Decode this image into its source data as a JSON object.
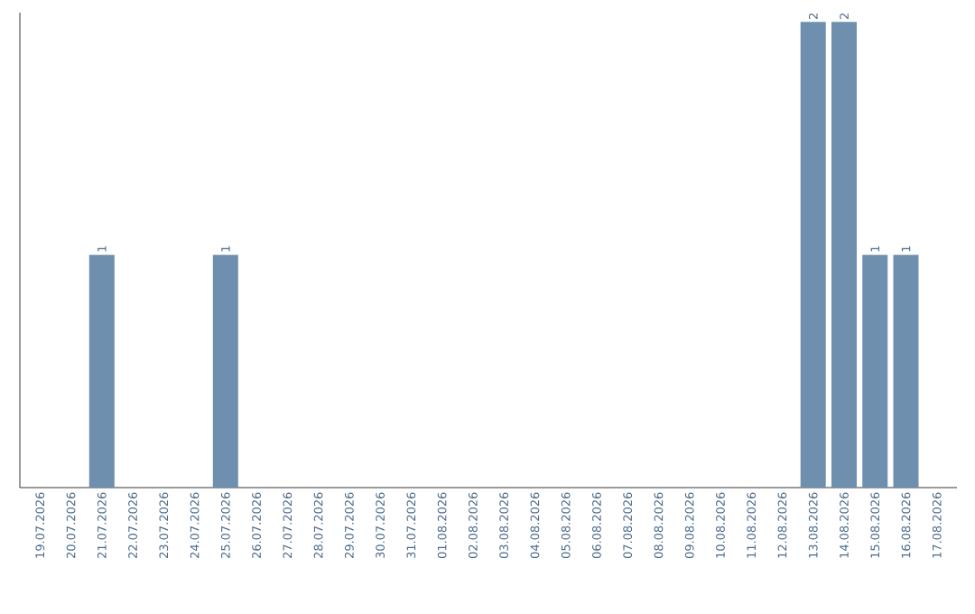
{
  "chart_data": {
    "type": "bar",
    "categories": [
      "19.07.2026",
      "20.07.2026",
      "21.07.2026",
      "22.07.2026",
      "23.07.2026",
      "24.07.2026",
      "25.07.2026",
      "26.07.2026",
      "27.07.2026",
      "28.07.2026",
      "29.07.2026",
      "30.07.2026",
      "31.07.2026",
      "01.08.2026",
      "02.08.2026",
      "03.08.2026",
      "04.08.2026",
      "05.08.2026",
      "06.08.2026",
      "07.08.2026",
      "08.08.2026",
      "09.08.2026",
      "10.08.2026",
      "11.08.2026",
      "12.08.2026",
      "13.08.2026",
      "14.08.2026",
      "15.08.2026",
      "16.08.2026",
      "17.08.2026"
    ],
    "values": [
      0,
      0,
      1,
      0,
      0,
      0,
      1,
      0,
      0,
      0,
      0,
      0,
      0,
      0,
      0,
      0,
      0,
      0,
      0,
      0,
      0,
      0,
      0,
      0,
      0,
      2,
      2,
      1,
      1,
      0
    ],
    "value_labels": [
      null,
      null,
      "1",
      null,
      null,
      null,
      "1",
      null,
      null,
      null,
      null,
      null,
      null,
      null,
      null,
      null,
      null,
      null,
      null,
      null,
      null,
      null,
      null,
      null,
      null,
      "2",
      "2",
      "1",
      "1",
      null
    ],
    "color": "#6e8fae",
    "tick_labels": "x"
  }
}
